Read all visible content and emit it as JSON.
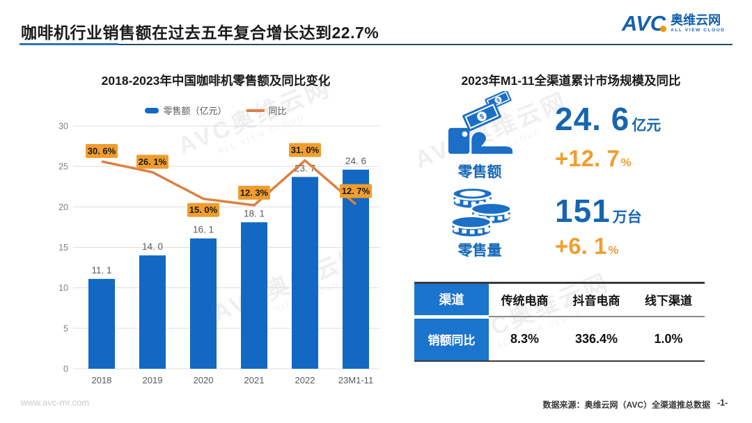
{
  "header": {
    "title": "咖啡机行业销售额在过去五年复合增长达到22.7%",
    "logo": {
      "abbr": "AVC",
      "name": "奥维云网",
      "tagline": "ALL VIEW CLOUD"
    }
  },
  "watermark": {
    "line1": "AVC奥维云网",
    "line2": "ALL VIEW CLOUD"
  },
  "chart_data": {
    "type": "bar+line",
    "title": "2018-2023年中国咖啡机零售额及同比变化",
    "categories": [
      "2018",
      "2019",
      "2020",
      "2021",
      "2022",
      "23M1-11"
    ],
    "series": [
      {
        "name": "零售额（亿元）",
        "type": "bar",
        "values": [
          11.1,
          14.0,
          16.1,
          18.1,
          23.7,
          24.6
        ],
        "color": "#1268C2"
      },
      {
        "name": "同比",
        "type": "line",
        "unit": "%",
        "values": [
          30.6,
          26.1,
          15.0,
          12.3,
          31.0,
          12.7
        ],
        "color": "#DD8040",
        "label_bg": "#F09D2E"
      }
    ],
    "yaxis": {
      "min": 0,
      "max": 30,
      "step": 5
    },
    "grid": true,
    "legend_position": "top"
  },
  "right_panel": {
    "title": "2023年M1-11全渠道累计市场规模及同比",
    "metrics": [
      {
        "icon": "money-hand",
        "label": "零售额",
        "value": "24. 6",
        "unit": "亿元",
        "yoy": "+12. 7",
        "yoy_unit": "%"
      },
      {
        "icon": "coins",
        "label": "零售量",
        "value": "151",
        "unit": "万台",
        "yoy": "+6. 1",
        "yoy_unit": "%"
      }
    ],
    "table": {
      "corner_label": "渠道",
      "row_label": "销额同比",
      "columns": [
        "传统电商",
        "抖音电商",
        "线下渠道"
      ],
      "values": [
        "8.3%",
        "336.4%",
        "1.0%"
      ]
    }
  },
  "footer": {
    "website": "www.avc-mr.com",
    "source": "数据来源：奥维云网（AVC）全渠道推总数据",
    "page": "-1-"
  },
  "colors": {
    "bar_blue": "#1268C2",
    "line_orange": "#DD8040",
    "label_orange": "#F09D2E",
    "value_blue": "#1765B0",
    "yoy_orange": "#F29D2C",
    "table_blue": "#1B74CE",
    "icon_blue": "#1B6FC6",
    "logo_blue": "#1460AC",
    "logo_dot": "#F39800",
    "underline_blue": "#2E74B5",
    "underline_navy": "#27496E",
    "grid_gray": "#DCDCDC",
    "tick_gray": "#7F7F7F",
    "axis_text": "#595959"
  }
}
